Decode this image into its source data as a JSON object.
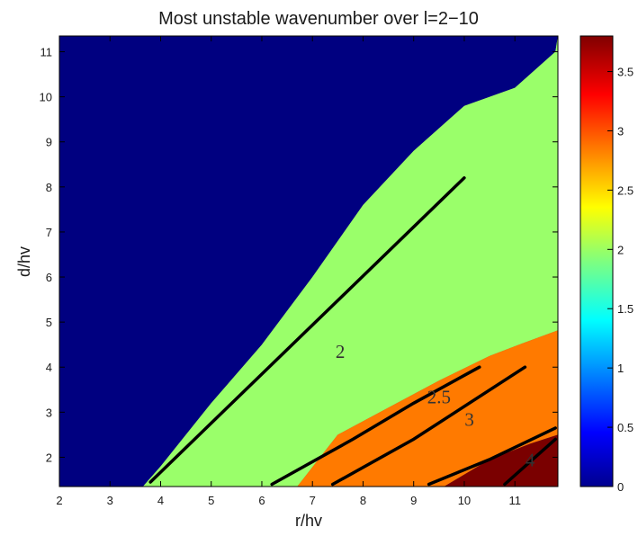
{
  "chart_data": {
    "type": "heatmap",
    "title": "Most unstable wavenumber over l=2−10",
    "xlabel": "r/hv",
    "ylabel": "d/hv",
    "xlim": [
      2,
      11.85
    ],
    "ylim": [
      1.35,
      11.35
    ],
    "xticks": [
      "2",
      "3",
      "4",
      "5",
      "6",
      "7",
      "8",
      "9",
      "10",
      "11"
    ],
    "yticks": [
      "2",
      "3",
      "4",
      "5",
      "6",
      "7",
      "8",
      "9",
      "10",
      "11"
    ],
    "colorbar": {
      "ticks": [
        "0",
        "0.5",
        "1",
        "1.5",
        "2",
        "2.5",
        "3",
        "3.5"
      ],
      "range": [
        0,
        3.8
      ],
      "colormap": "jet"
    },
    "regions": [
      {
        "value": 0,
        "color": "#000080",
        "polygon": [
          [
            2,
            1.35
          ],
          [
            3.65,
            1.35
          ],
          [
            4,
            1.8
          ],
          [
            5,
            3.2
          ],
          [
            6,
            4.5
          ],
          [
            7,
            6.0
          ],
          [
            8,
            7.6
          ],
          [
            9,
            8.8
          ],
          [
            10,
            9.8
          ],
          [
            11,
            10.2
          ],
          [
            11.8,
            11.0
          ],
          [
            11.85,
            11.35
          ],
          [
            2,
            11.35
          ]
        ]
      },
      {
        "value": 2,
        "color": "#9aff6a",
        "polygon": [
          [
            3.65,
            1.35
          ],
          [
            4,
            1.8
          ],
          [
            5,
            3.2
          ],
          [
            6,
            4.5
          ],
          [
            7,
            6.0
          ],
          [
            8,
            7.6
          ],
          [
            9,
            8.8
          ],
          [
            10,
            9.8
          ],
          [
            11,
            10.2
          ],
          [
            11.8,
            11.0
          ],
          [
            11.85,
            11.35
          ],
          [
            11.85,
            4.82
          ],
          [
            11.2,
            4.55
          ],
          [
            10.5,
            4.25
          ],
          [
            9.5,
            3.7
          ],
          [
            8.5,
            3.1
          ],
          [
            7.5,
            2.5
          ],
          [
            6.7,
            1.35
          ]
        ]
      },
      {
        "value": 3,
        "color": "#ff7a00",
        "polygon": [
          [
            6.7,
            1.35
          ],
          [
            7.5,
            2.5
          ],
          [
            8.5,
            3.1
          ],
          [
            9.5,
            3.7
          ],
          [
            10.5,
            4.25
          ],
          [
            11.2,
            4.55
          ],
          [
            11.85,
            4.82
          ],
          [
            11.85,
            2.5
          ],
          [
            11.3,
            2.3
          ],
          [
            10.5,
            1.95
          ],
          [
            9.6,
            1.35
          ]
        ]
      },
      {
        "value": 4,
        "color": "#7a0000",
        "polygon": [
          [
            9.6,
            1.35
          ],
          [
            10.5,
            1.95
          ],
          [
            11.3,
            2.3
          ],
          [
            11.85,
            2.5
          ],
          [
            11.85,
            1.35
          ]
        ]
      }
    ],
    "lines": [
      {
        "points": [
          [
            3.8,
            1.45
          ],
          [
            10.0,
            8.2
          ]
        ]
      },
      {
        "points": [
          [
            6.2,
            1.4
          ],
          [
            7.8,
            2.4
          ],
          [
            9.0,
            3.2
          ],
          [
            10.3,
            4.0
          ]
        ]
      },
      {
        "points": [
          [
            7.4,
            1.4
          ],
          [
            9.0,
            2.4
          ],
          [
            11.2,
            4.0
          ]
        ]
      },
      {
        "points": [
          [
            9.3,
            1.4
          ],
          [
            10.5,
            1.95
          ],
          [
            11.8,
            2.65
          ]
        ]
      },
      {
        "points": [
          [
            10.8,
            1.4
          ],
          [
            11.8,
            2.4
          ]
        ]
      }
    ],
    "annotations": [
      {
        "text": "2",
        "x": 7.55,
        "y": 4.2
      },
      {
        "text": "2.5",
        "x": 9.5,
        "y": 3.2
      },
      {
        "text": "3",
        "x": 10.1,
        "y": 2.7
      },
      {
        "text": "4",
        "x": 11.3,
        "y": 1.8
      }
    ]
  }
}
